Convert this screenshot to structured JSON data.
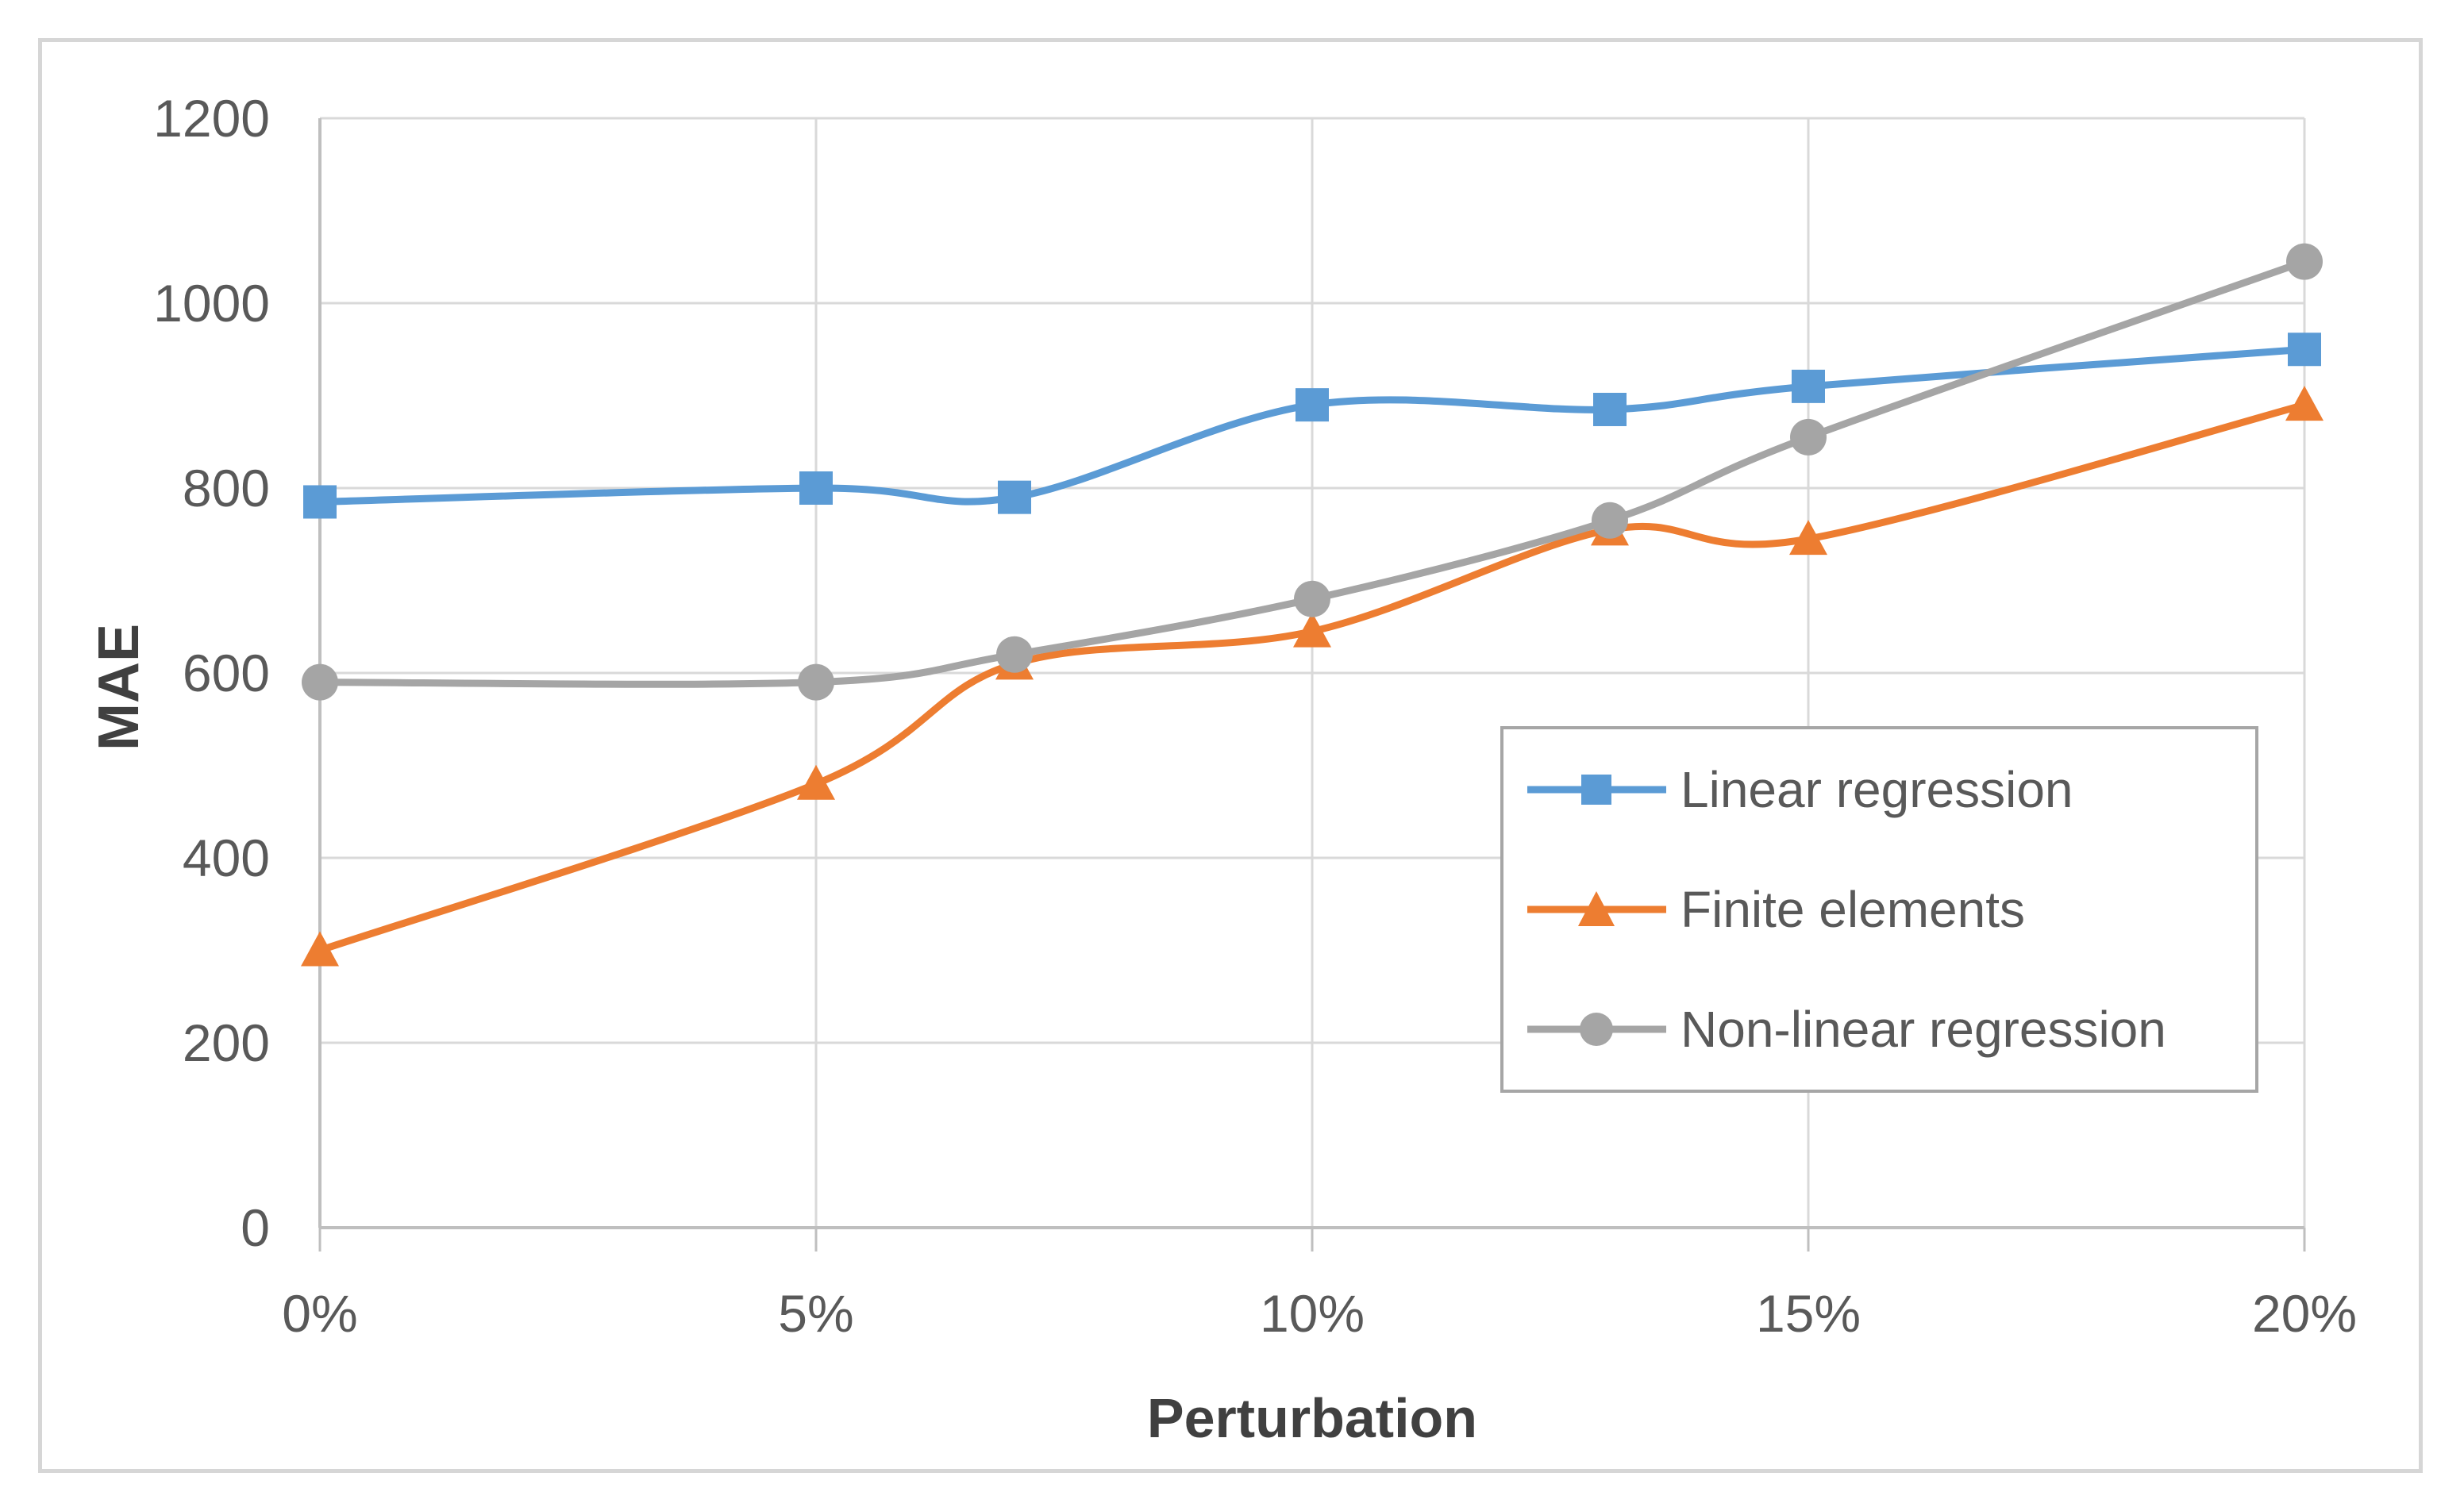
{
  "chart_data": {
    "type": "line",
    "title": "",
    "xlabel": "Perturbation",
    "ylabel": "MAE",
    "x_percent": [
      0,
      5,
      7,
      10,
      13,
      15,
      20
    ],
    "x_tick_values": [
      0,
      5,
      10,
      15,
      20
    ],
    "x_tick_labels": [
      "0%",
      "5%",
      "10%",
      "15%",
      "20%"
    ],
    "y_ticks": [
      0,
      200,
      400,
      600,
      800,
      1000,
      1200
    ],
    "y_tick_labels": [
      "0",
      "200",
      "400",
      "600",
      "800",
      "1000",
      "1200"
    ],
    "xlim": [
      0,
      20
    ],
    "ylim": [
      0,
      1200
    ],
    "grid": true,
    "line_style": "smooth",
    "legend_position": "inside-middle-right",
    "series": [
      {
        "name": "Linear regression",
        "marker": "square",
        "color": "#5B9BD5",
        "values": [
          785,
          800,
          790,
          890,
          885,
          910,
          950
        ]
      },
      {
        "name": "Finite elements",
        "marker": "triangle",
        "color": "#ED7D31",
        "values": [
          300,
          480,
          610,
          645,
          755,
          745,
          890
        ]
      },
      {
        "name": "Non-linear regression",
        "marker": "circle",
        "color": "#A5A5A5",
        "values": [
          590,
          590,
          620,
          680,
          765,
          855,
          1045
        ]
      }
    ]
  },
  "appearance": {
    "background": "#FFFFFF",
    "frame_border_color": "#D6D6D6",
    "gridline_color": "#D9D9D9",
    "axis_line_color": "#BFBFBF",
    "tick_label_color": "#595959",
    "axis_title_color": "#404040",
    "legend_border_color": "#A6A6A6"
  }
}
